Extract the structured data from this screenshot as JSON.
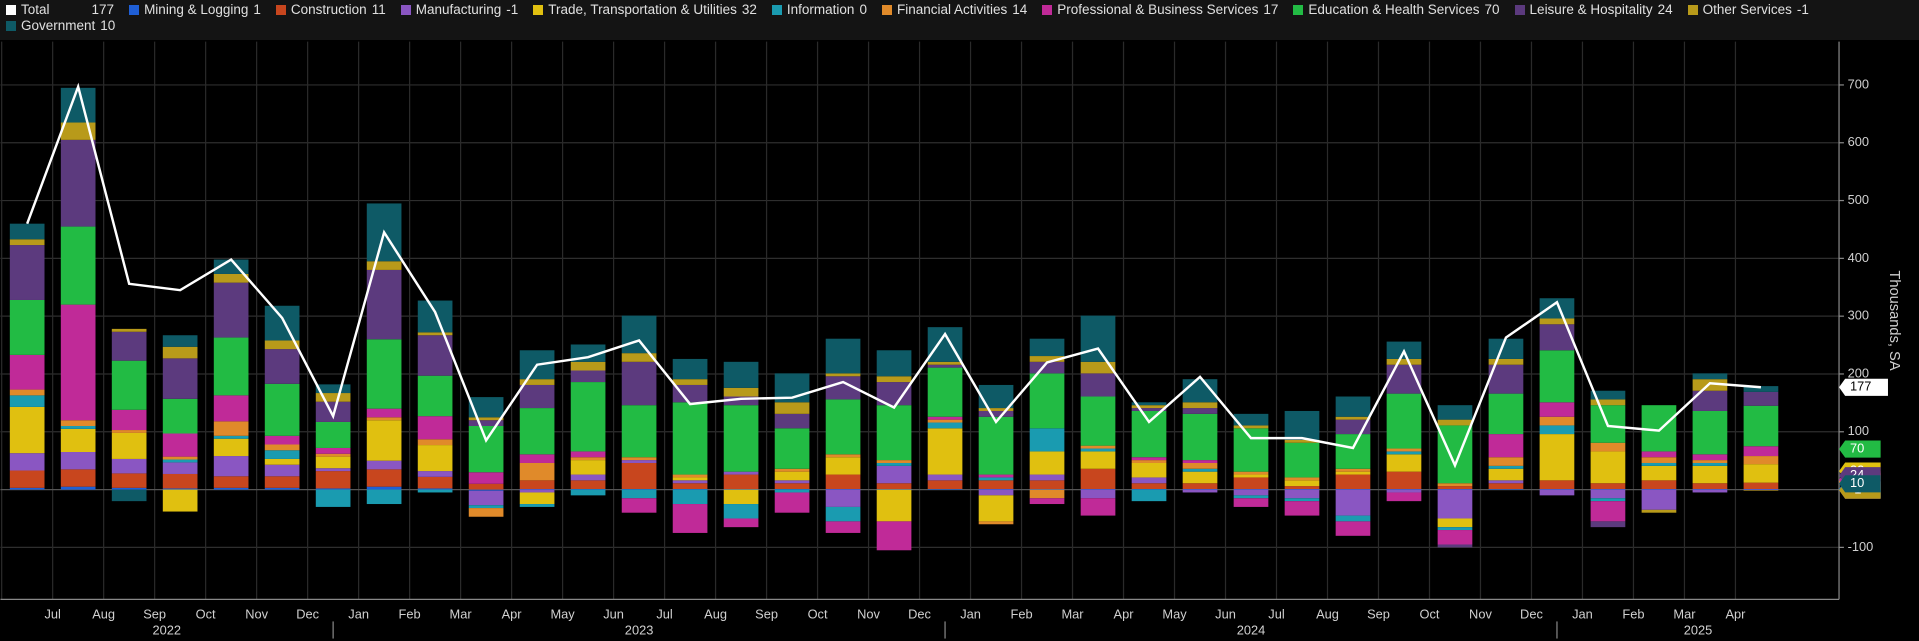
{
  "chart_data": {
    "type": "bar",
    "y_label": "Thousands, SA",
    "ylim": [
      -190,
      775
    ],
    "yticks": [
      -100,
      100,
      200,
      300,
      400,
      500,
      600,
      700
    ],
    "grid": true,
    "categories": [
      null,
      "Jul",
      "Aug",
      "Sep",
      "Oct",
      "Nov",
      "Dec",
      "Jan",
      "Feb",
      "Mar",
      "Apr",
      "May",
      "Jun",
      "Jul",
      "Aug",
      "Sep",
      "Oct",
      "Nov",
      "Dec",
      "Jan",
      "Feb",
      "Mar",
      "Apr",
      "May",
      "Jun",
      "Jul",
      "Aug",
      "Sep",
      "Oct",
      "Nov",
      "Dec",
      "Jan",
      "Feb",
      "Mar",
      "Apr"
    ],
    "years": [
      "2022",
      "2023",
      "2024",
      "2025"
    ],
    "total": {
      "name": "Total",
      "color": "#ffffff",
      "values": [
        460,
        697,
        356,
        345,
        398,
        297,
        127,
        445,
        307,
        85,
        216,
        229,
        258,
        148,
        157,
        159,
        186,
        142,
        269,
        117,
        220,
        244,
        117,
        195,
        89,
        89,
        72,
        239,
        42,
        263,
        324,
        110,
        102,
        184,
        177
      ]
    },
    "series": [
      {
        "name": "Mining & Logging",
        "color": "#1f5fd6",
        "values": [
          3,
          5,
          3,
          2,
          3,
          3,
          2,
          5,
          2,
          -2,
          1,
          1,
          1,
          1,
          1,
          1,
          1,
          1,
          1,
          1,
          1,
          1,
          1,
          1,
          1,
          1,
          1,
          1,
          1,
          1,
          1,
          1,
          1,
          1,
          1
        ]
      },
      {
        "name": "Construction",
        "color": "#c8461e",
        "values": [
          30,
          30,
          25,
          25,
          20,
          20,
          30,
          30,
          20,
          10,
          15,
          15,
          45,
          10,
          25,
          10,
          25,
          10,
          15,
          15,
          15,
          35,
          10,
          10,
          20,
          5,
          25,
          30,
          5,
          10,
          15,
          10,
          15,
          10,
          11
        ]
      },
      {
        "name": "Manufacturing",
        "color": "#8a56c2",
        "values": [
          30,
          30,
          25,
          20,
          35,
          20,
          5,
          15,
          10,
          -25,
          -5,
          10,
          5,
          5,
          5,
          5,
          -30,
          30,
          10,
          -10,
          10,
          -15,
          10,
          -5,
          -10,
          -15,
          -45,
          -5,
          -50,
          5,
          -10,
          -15,
          -35,
          -5,
          -1
        ]
      },
      {
        "name": "Trade, Transportation & Utilities",
        "color": "#e0c010",
        "values": [
          80,
          40,
          45,
          -38,
          30,
          10,
          20,
          70,
          45,
          0,
          -20,
          25,
          0,
          5,
          -25,
          15,
          30,
          -55,
          80,
          -45,
          40,
          30,
          25,
          20,
          5,
          10,
          5,
          30,
          -15,
          20,
          80,
          55,
          25,
          30,
          32
        ]
      },
      {
        "name": "Information",
        "color": "#1a9bb0",
        "values": [
          20,
          5,
          0,
          5,
          5,
          15,
          -30,
          -25,
          -5,
          -5,
          -5,
          -10,
          -15,
          -25,
          -25,
          -5,
          -25,
          5,
          10,
          5,
          40,
          5,
          -20,
          5,
          -5,
          -5,
          -10,
          5,
          -5,
          5,
          15,
          -5,
          5,
          5,
          0
        ]
      },
      {
        "name": "Financial Activities",
        "color": "#e08a2a",
        "values": [
          10,
          10,
          5,
          5,
          25,
          10,
          5,
          5,
          10,
          -15,
          30,
          5,
          5,
          5,
          0,
          5,
          5,
          5,
          5,
          -5,
          -15,
          5,
          5,
          10,
          5,
          5,
          5,
          5,
          5,
          15,
          15,
          15,
          10,
          5,
          14
        ]
      },
      {
        "name": "Professional & Business Services",
        "color": "#c02a98",
        "values": [
          60,
          200,
          35,
          40,
          45,
          15,
          10,
          15,
          40,
          20,
          15,
          10,
          -25,
          -50,
          -15,
          -35,
          -20,
          -50,
          5,
          5,
          -10,
          -30,
          5,
          5,
          -15,
          -25,
          -25,
          -15,
          -25,
          40,
          25,
          -35,
          10,
          10,
          17
        ]
      },
      {
        "name": "Education & Health Services",
        "color": "#22bb44",
        "values": [
          95,
          135,
          85,
          60,
          100,
          90,
          45,
          120,
          70,
          80,
          80,
          120,
          90,
          125,
          115,
          70,
          95,
          95,
          85,
          100,
          95,
          85,
          80,
          80,
          75,
          60,
          60,
          95,
          100,
          70,
          90,
          65,
          80,
          75,
          70
        ]
      },
      {
        "name": "Leisure & Hospitality",
        "color": "#5c3a7e",
        "values": [
          95,
          150,
          50,
          70,
          95,
          60,
          35,
          120,
          70,
          10,
          40,
          20,
          75,
          30,
          15,
          25,
          40,
          40,
          5,
          10,
          20,
          40,
          5,
          10,
          0,
          0,
          25,
          50,
          -5,
          50,
          45,
          -10,
          0,
          35,
          24
        ]
      },
      {
        "name": "Other Services",
        "color": "#b89a1a",
        "values": [
          10,
          30,
          5,
          20,
          15,
          15,
          15,
          15,
          5,
          5,
          10,
          15,
          15,
          10,
          15,
          20,
          5,
          10,
          5,
          5,
          10,
          20,
          5,
          10,
          5,
          5,
          5,
          10,
          10,
          10,
          10,
          10,
          -5,
          20,
          -1
        ]
      },
      {
        "name": "Government",
        "color": "#0e5a66",
        "values": [
          27,
          60,
          -20,
          20,
          25,
          60,
          15,
          100,
          55,
          35,
          50,
          30,
          65,
          35,
          45,
          50,
          60,
          45,
          60,
          40,
          30,
          80,
          5,
          40,
          20,
          50,
          35,
          30,
          25,
          35,
          35,
          15,
          0,
          10,
          10
        ]
      }
    ]
  }
}
